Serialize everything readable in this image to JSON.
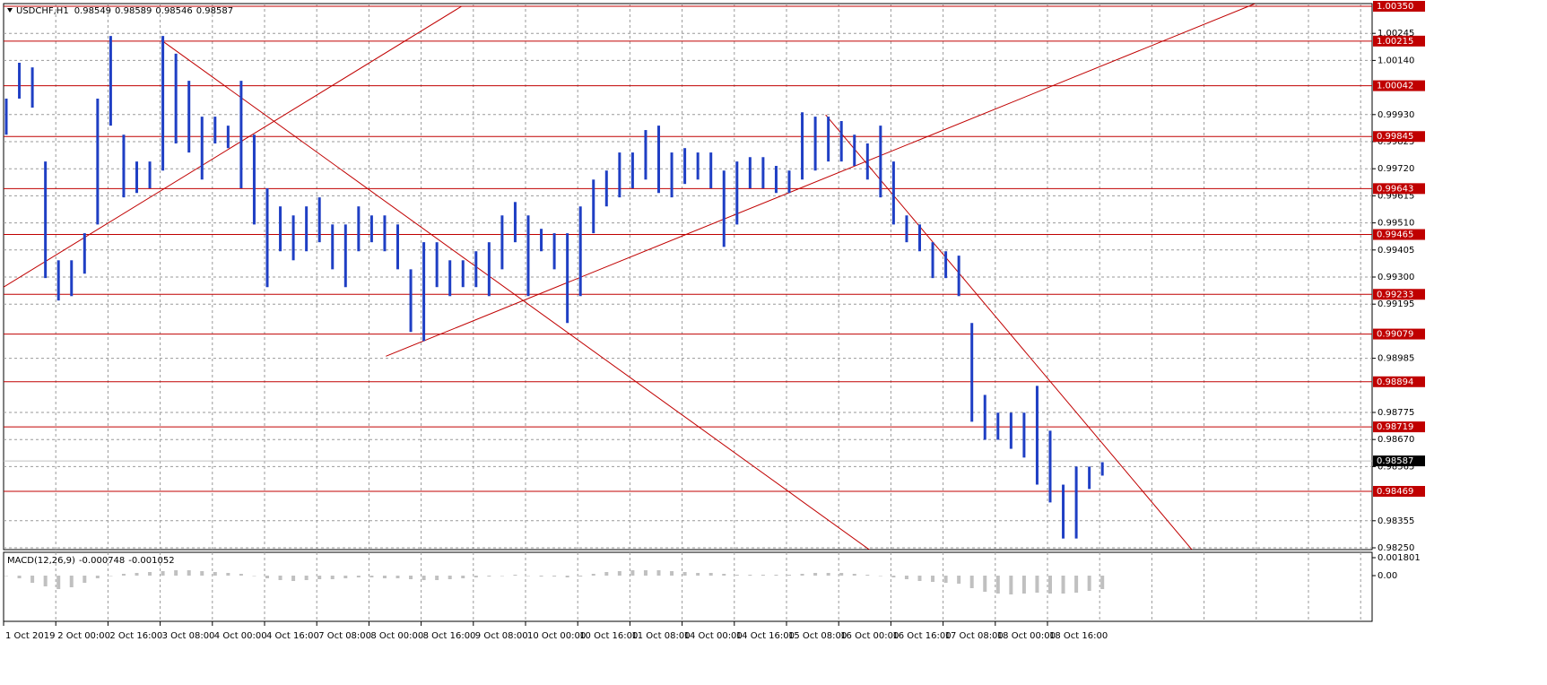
{
  "chart_data": {
    "type": "ohlc",
    "symbol": "USDCHF,H1",
    "ohlc": [
      0.98549,
      0.98589,
      0.98546,
      0.98587
    ],
    "color": "#1f3fc4",
    "categories": [
      "1 Oct 2019",
      "2 Oct 00:00",
      "2 Oct 16:00",
      "3 Oct 08:00",
      "4 Oct 00:00",
      "4 Oct 16:00",
      "7 Oct 08:00",
      "8 Oct 00:00",
      "8 Oct 16:00",
      "9 Oct 08:00",
      "10 Oct 00:00",
      "10 Oct 16:00",
      "11 Oct 08:00",
      "14 Oct 00:00",
      "14 Oct 16:00",
      "15 Oct 08:00",
      "16 Oct 00:00",
      "16 Oct 16:00",
      "17 Oct 08:00",
      "18 Oct 00:00",
      "18 Oct 16:00",
      null,
      null,
      null,
      null,
      null,
      null
    ],
    "high": [
      0.99992,
      1.00131,
      1.00113,
      0.99748,
      0.99365,
      0.99365,
      0.9947,
      0.99992,
      1.00235,
      0.99852,
      0.99748,
      0.99748,
      1.00235,
      1.00166,
      1.00061,
      0.99922,
      0.99922,
      0.99887,
      1.00061,
      0.99852,
      0.99644,
      0.99574,
      0.99539,
      0.99574,
      0.99609,
      0.99504,
      0.99504,
      0.99574,
      0.99539,
      0.99539,
      0.99504,
      0.9933,
      0.99435,
      0.99435,
      0.99365,
      0.99365,
      0.994,
      0.99435,
      0.99539,
      0.99591,
      0.99539,
      0.99487,
      0.9947,
      0.9947,
      0.99574,
      0.99678,
      0.99713,
      0.99783,
      0.99783,
      0.9987,
      0.99887,
      0.99783,
      0.998,
      0.99783,
      0.99783,
      0.99713,
      0.99748,
      0.99765,
      0.99765,
      0.99731,
      0.99713,
      0.99939,
      0.99922,
      0.99922,
      0.99905,
      0.99852,
      0.99818,
      0.99887,
      0.99748,
      0.99539,
      0.99504,
      0.99435,
      0.994,
      0.99383,
      0.99122,
      0.98843,
      0.98774,
      0.98774,
      0.98774,
      0.98878,
      0.98704,
      0.98495,
      0.98565,
      0.98565,
      0.98582
    ],
    "low": [
      0.99852,
      0.99992,
      0.99957,
      0.99296,
      0.99209,
      0.99226,
      0.99313,
      0.99504,
      0.99887,
      0.99609,
      0.99626,
      0.99644,
      0.99713,
      0.99818,
      0.99783,
      0.99678,
      0.99818,
      0.998,
      0.99644,
      0.99504,
      0.99261,
      0.994,
      0.99365,
      0.994,
      0.99435,
      0.9933,
      0.99261,
      0.994,
      0.99435,
      0.994,
      0.9933,
      0.99087,
      0.99052,
      0.99261,
      0.99226,
      0.99261,
      0.99261,
      0.99226,
      0.9933,
      0.99435,
      0.99226,
      0.994,
      0.9933,
      0.99122,
      0.99226,
      0.9947,
      0.99574,
      0.99609,
      0.99644,
      0.99678,
      0.99626,
      0.99609,
      0.99661,
      0.99678,
      0.99644,
      0.99417,
      0.99504,
      0.99644,
      0.99644,
      0.99626,
      0.99626,
      0.99678,
      0.99713,
      0.99748,
      0.99748,
      0.99731,
      0.99678,
      0.99609,
      0.99504,
      0.99435,
      0.994,
      0.99296,
      0.99296,
      0.99226,
      0.98739,
      0.98669,
      0.98669,
      0.98634,
      0.986,
      0.98495,
      0.98426,
      0.98286,
      0.98286,
      0.98478,
      0.9853
    ],
    "ylim": [
      0.9825,
      1.0035
    ],
    "yticks": [
      1.00245,
      {
        "value": 1.0014,
        "label": "1.00140"
      },
      {
        "value": 0.9993,
        "label": "0.99930"
      },
      0.99825,
      {
        "value": 0.9972,
        "label": "0.99720"
      },
      0.99615,
      {
        "value": 0.9951,
        "label": "0.99510"
      },
      0.99405,
      {
        "value": 0.993,
        "label": "0.99300"
      },
      0.99195,
      0.98985,
      0.98775,
      {
        "value": 0.9867,
        "label": "0.98670"
      },
      0.98565,
      0.98355,
      {
        "value": 0.9825,
        "label": "0.98250"
      }
    ],
    "grid": true,
    "level_color": "#c00000",
    "levels": [
      {
        "value": 1.0035,
        "label": "1.00350"
      },
      1.00215,
      1.00042,
      0.99845,
      0.99643,
      0.99465,
      0.99233,
      0.99079,
      0.98894,
      0.98719,
      0.98469
    ],
    "current_price": 0.98587,
    "trendlines": [
      {
        "x": [
          0,
          35.1
        ],
        "y": [
          0.99261,
          1.0035
        ]
      },
      {
        "x": [
          12.1,
          66.4
        ],
        "y": [
          1.00218,
          0.98241
        ]
      },
      {
        "x": [
          29.3,
          95.9
        ],
        "y": [
          0.98993,
          1.0036
        ]
      },
      {
        "x": [
          63,
          91.1
        ],
        "y": [
          0.99929,
          0.98241
        ]
      }
    ],
    "macd": {
      "label": "MACD(12,26,9)",
      "values": [
        -0.000748,
        -0.001052
      ],
      "color": "#c0c0c0",
      "histogram": [
        0,
        -0.00027,
        -0.00072,
        -0.00108,
        -0.00135,
        -0.00117,
        -0.00072,
        -0.00027,
        0,
        0.00018,
        0.00027,
        0.00036,
        0.00045,
        0.00054,
        0.00054,
        0.00045,
        0.00036,
        0.00027,
        0.00018,
        0,
        -0.00027,
        -0.00045,
        -0.00054,
        -0.00045,
        -0.00036,
        -0.00036,
        -0.00027,
        -0.00018,
        -0.00018,
        -0.00027,
        -0.00027,
        -0.00036,
        -0.00045,
        -0.00045,
        -0.00036,
        -0.00027,
        -0.00018,
        -9e-05,
        0,
        9e-05,
        0,
        -9e-05,
        -9e-05,
        -0.00018,
        -9e-05,
        0.00018,
        0.00036,
        0.00045,
        0.00054,
        0.00054,
        0.00054,
        0.00045,
        0.00036,
        0.00027,
        0.00027,
        0.00018,
        9e-05,
        9e-05,
        9e-05,
        9e-05,
        9e-05,
        0.00018,
        0.00027,
        0.00027,
        0.00027,
        0.00018,
        9e-05,
        0,
        -0.00018,
        -0.00036,
        -0.00054,
        -0.00063,
        -0.00072,
        -0.00081,
        -0.00126,
        -0.00162,
        -0.0018,
        -0.00189,
        -0.0018,
        -0.00171,
        -0.0018,
        -0.0018,
        -0.00171,
        -0.00153,
        -0.00135
      ],
      "ylim": [
        -0.0045,
        0.00225
      ],
      "yticks": [
        0.001801,
        {
          "value": 0,
          "label": "0.00"
        }
      ]
    }
  }
}
